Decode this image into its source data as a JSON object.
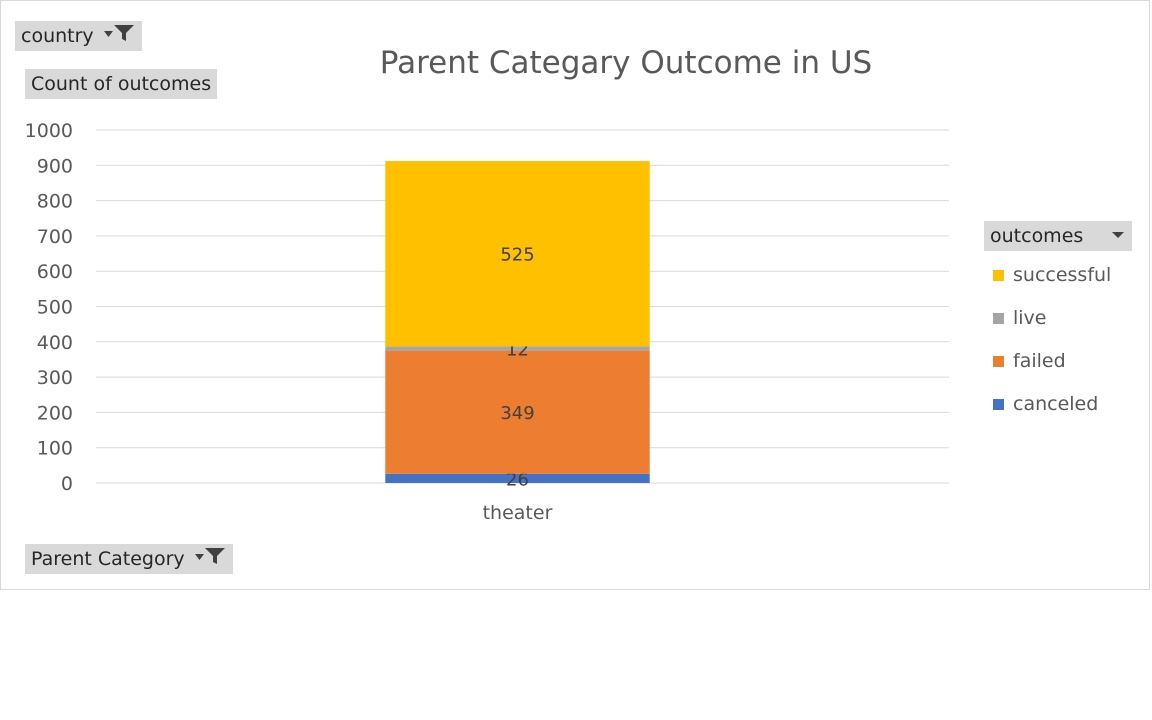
{
  "filters": {
    "country_label": "country",
    "values_label": "Count of outcomes",
    "category_label": "Parent Category",
    "legend_field_label": "outcomes"
  },
  "legend": {
    "items": [
      {
        "label": "successful",
        "color": "#ffc000"
      },
      {
        "label": "live",
        "color": "#a5a5a5"
      },
      {
        "label": "failed",
        "color": "#ed7d31"
      },
      {
        "label": "canceled",
        "color": "#4472c4"
      }
    ]
  },
  "chart_data": {
    "type": "bar",
    "stacked": true,
    "title": "Parent Categary Outcome in US",
    "categories": [
      "theater"
    ],
    "series": [
      {
        "name": "canceled",
        "values": [
          26
        ],
        "color": "#4472c4"
      },
      {
        "name": "failed",
        "values": [
          349
        ],
        "color": "#ed7d31"
      },
      {
        "name": "live",
        "values": [
          12
        ],
        "color": "#a5a5a5"
      },
      {
        "name": "successful",
        "values": [
          525
        ],
        "color": "#ffc000"
      }
    ],
    "ylim": [
      0,
      1000
    ],
    "yticks": [
      "0",
      "100",
      "200",
      "300",
      "400",
      "500",
      "600",
      "700",
      "800",
      "900",
      "1000"
    ],
    "grid": true,
    "legend_position": "right"
  }
}
